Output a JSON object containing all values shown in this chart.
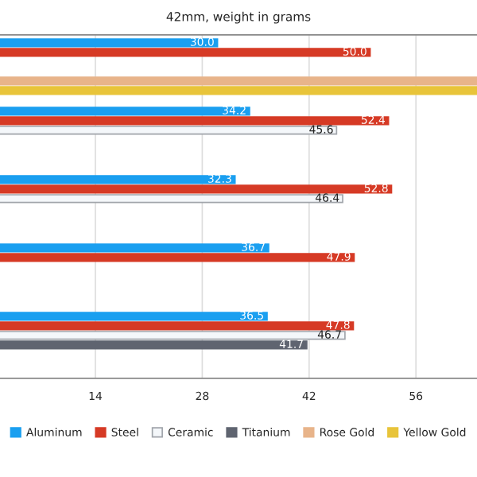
{
  "chart_data": {
    "type": "bar",
    "orientation": "horizontal",
    "title": "42mm, weight in grams",
    "categories": [
      null,
      null,
      null,
      null,
      null
    ],
    "series": [
      {
        "name": "Aluminum",
        "color": "#1a9ff0",
        "values": [
          30.0,
          34.2,
          32.3,
          36.7,
          36.5
        ],
        "value_labels": [
          "30.0",
          "34.2",
          "32.3",
          "36.7",
          "36.5"
        ]
      },
      {
        "name": "Steel",
        "color": "#d63a25",
        "values": [
          50.0,
          52.4,
          52.8,
          47.9,
          47.8
        ],
        "value_labels": [
          "50.0",
          "52.4",
          "52.8",
          "47.9",
          "47.8"
        ]
      },
      {
        "name": "Ceramic",
        "color": "#f4f7fa",
        "values": [
          null,
          45.6,
          46.4,
          null,
          46.7
        ],
        "value_labels": [
          null,
          "45.6",
          "46.4",
          null,
          "46.7"
        ]
      },
      {
        "name": "Titanium",
        "color": "#5f6470",
        "values": [
          null,
          null,
          null,
          null,
          41.7
        ],
        "value_labels": [
          null,
          null,
          null,
          null,
          "41.7"
        ]
      },
      {
        "name": "Rose Gold",
        "color": "#e8b48a",
        "values": [
          64,
          null,
          null,
          null,
          null
        ]
      },
      {
        "name": "Yellow Gold",
        "color": "#e8c43a",
        "values": [
          64,
          null,
          null,
          null,
          null
        ]
      }
    ],
    "xlim": [
      1.5,
      64
    ],
    "xticks": [
      14,
      28,
      42,
      56
    ],
    "grid": "x",
    "legend": "bottom"
  }
}
